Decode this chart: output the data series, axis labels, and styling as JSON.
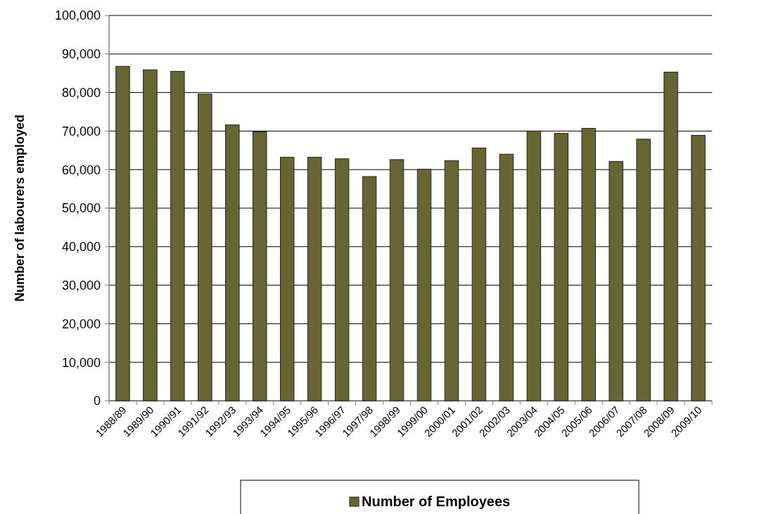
{
  "chart_data": {
    "type": "bar",
    "ylabel": "Number of labourers employed",
    "categories": [
      "1988/89",
      "1989/90",
      "1990/91",
      "1991/92",
      "1992/93",
      "1993/94",
      "1994/95",
      "1995/96",
      "1996/97",
      "1997/98",
      "1998/99",
      "1999/00",
      "2000/01",
      "2001/02",
      "2002/03",
      "2003/04",
      "2004/05",
      "2005/06",
      "2006/07",
      "2007/08",
      "2008/09",
      "2009/10"
    ],
    "series": [
      {
        "name": "Number of Employees",
        "color": "#666633",
        "values": [
          86800,
          85900,
          85500,
          79600,
          71600,
          69800,
          63200,
          63200,
          62800,
          58200,
          62600,
          60100,
          62300,
          65600,
          64000,
          70000,
          69400,
          70700,
          62100,
          67900,
          85300,
          68900
        ]
      }
    ],
    "ylim": [
      0,
      100000
    ],
    "yticks": [
      {
        "value": 0,
        "label": "0"
      },
      {
        "value": 10000,
        "label": "10,000"
      },
      {
        "value": 20000,
        "label": "20,000"
      },
      {
        "value": 30000,
        "label": "30,000"
      },
      {
        "value": 40000,
        "label": "40,000"
      },
      {
        "value": 50000,
        "label": "50,000"
      },
      {
        "value": 60000,
        "label": "60,000"
      },
      {
        "value": 70000,
        "label": "70,000"
      },
      {
        "value": 80000,
        "label": "80,000"
      },
      {
        "value": 90000,
        "label": "90,000"
      },
      {
        "value": 100000,
        "label": "100,000"
      }
    ],
    "grid": "y",
    "legend": "bottom"
  }
}
